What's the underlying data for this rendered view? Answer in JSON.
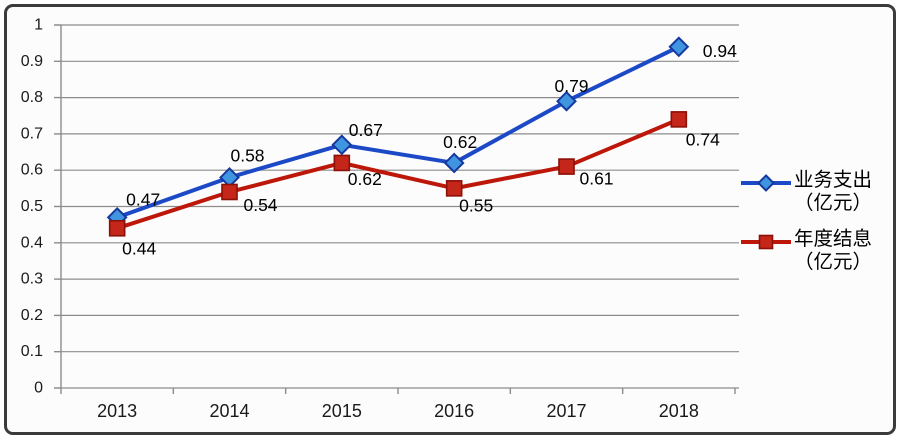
{
  "page": {
    "background": "#fcfcfc",
    "frame_border_color": "#3b3b3b"
  },
  "chart_data": {
    "type": "line",
    "title": "",
    "categories": [
      "2013",
      "2014",
      "2015",
      "2016",
      "2017",
      "2018"
    ],
    "y_axis": {
      "min": 0,
      "max": 1,
      "step": 0.1,
      "tick_labels": [
        "0",
        "0.1",
        "0.2",
        "0.3",
        "0.4",
        "0.5",
        "0.6",
        "0.7",
        "0.8",
        "0.9",
        "1"
      ]
    },
    "grid": "horizontal",
    "grid_color": "#8c8c8c",
    "axis_color": "#8c8c8c",
    "tick_label_color": "#1a1a1a",
    "data_label_color": "#000000",
    "legend_position": "right",
    "series": [
      {
        "name": "业务支出（亿元）",
        "legend_lines": [
          "业务支出",
          "（亿元）"
        ],
        "values": [
          0.47,
          0.58,
          0.67,
          0.62,
          0.79,
          0.94
        ],
        "data_labels": [
          "0.47",
          "0.58",
          "0.67",
          "0.62",
          "0.79",
          "0.94"
        ],
        "line_color": "#1c49c6",
        "marker": "diamond",
        "marker_fill": "#3f95e0",
        "marker_stroke": "#17389d",
        "label_offsets": [
          [
            26,
            -18
          ],
          [
            18,
            -22
          ],
          [
            24,
            -15
          ],
          [
            6,
            -21
          ],
          [
            5,
            -15
          ],
          [
            41,
            4
          ]
        ]
      },
      {
        "name": "年度结息（亿元）",
        "legend_lines": [
          "年度结息",
          "（亿元）"
        ],
        "values": [
          0.44,
          0.54,
          0.62,
          0.55,
          0.61,
          0.74
        ],
        "data_labels": [
          "0.44",
          "0.54",
          "0.62",
          "0.55",
          "0.61",
          "0.74"
        ],
        "line_color": "#bd170a",
        "marker": "square",
        "marker_fill": "#c4261a",
        "marker_stroke": "#8c1008",
        "label_offsets": [
          [
            22,
            20
          ],
          [
            31,
            13
          ],
          [
            23,
            16
          ],
          [
            22,
            17
          ],
          [
            30,
            12
          ],
          [
            24,
            20
          ]
        ]
      }
    ]
  }
}
